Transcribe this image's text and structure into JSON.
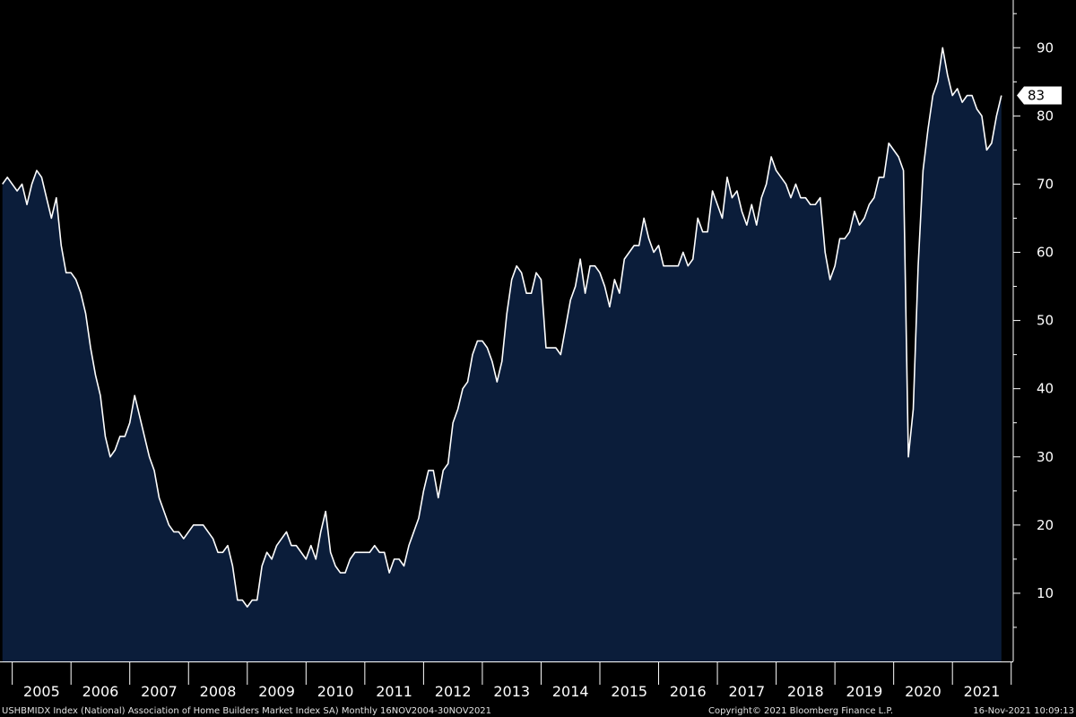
{
  "chart_data": {
    "type": "area",
    "y_axis_side": "right",
    "ylim": [
      0,
      97
    ],
    "y_ticks": [
      10,
      20,
      30,
      40,
      50,
      60,
      70,
      80,
      90
    ],
    "x_range": [
      "2004-11",
      "2021-12"
    ],
    "x_tick_labels": [
      "2005",
      "2006",
      "2007",
      "2008",
      "2009",
      "2010",
      "2011",
      "2012",
      "2013",
      "2014",
      "2015",
      "2016",
      "2017",
      "2018",
      "2019",
      "2020",
      "2021"
    ],
    "last_value_label": "83",
    "series": [
      {
        "type": "area",
        "points": [
          [
            "2004-11",
            70
          ],
          [
            "2004-12",
            71
          ],
          [
            "2005-01",
            70
          ],
          [
            "2005-02",
            69
          ],
          [
            "2005-03",
            70
          ],
          [
            "2005-04",
            67
          ],
          [
            "2005-05",
            70
          ],
          [
            "2005-06",
            72
          ],
          [
            "2005-07",
            71
          ],
          [
            "2005-08",
            68
          ],
          [
            "2005-09",
            65
          ],
          [
            "2005-10",
            68
          ],
          [
            "2005-11",
            61
          ],
          [
            "2005-12",
            57
          ],
          [
            "2006-01",
            57
          ],
          [
            "2006-02",
            56
          ],
          [
            "2006-03",
            54
          ],
          [
            "2006-04",
            51
          ],
          [
            "2006-05",
            46
          ],
          [
            "2006-06",
            42
          ],
          [
            "2006-07",
            39
          ],
          [
            "2006-08",
            33
          ],
          [
            "2006-09",
            30
          ],
          [
            "2006-10",
            31
          ],
          [
            "2006-11",
            33
          ],
          [
            "2006-12",
            33
          ],
          [
            "2007-01",
            35
          ],
          [
            "2007-02",
            39
          ],
          [
            "2007-03",
            36
          ],
          [
            "2007-04",
            33
          ],
          [
            "2007-05",
            30
          ],
          [
            "2007-06",
            28
          ],
          [
            "2007-07",
            24
          ],
          [
            "2007-08",
            22
          ],
          [
            "2007-09",
            20
          ],
          [
            "2007-10",
            19
          ],
          [
            "2007-11",
            19
          ],
          [
            "2007-12",
            18
          ],
          [
            "2008-01",
            19
          ],
          [
            "2008-02",
            20
          ],
          [
            "2008-03",
            20
          ],
          [
            "2008-04",
            20
          ],
          [
            "2008-05",
            19
          ],
          [
            "2008-06",
            18
          ],
          [
            "2008-07",
            16
          ],
          [
            "2008-08",
            16
          ],
          [
            "2008-09",
            17
          ],
          [
            "2008-10",
            14
          ],
          [
            "2008-11",
            9
          ],
          [
            "2008-12",
            9
          ],
          [
            "2009-01",
            8
          ],
          [
            "2009-02",
            9
          ],
          [
            "2009-03",
            9
          ],
          [
            "2009-04",
            14
          ],
          [
            "2009-05",
            16
          ],
          [
            "2009-06",
            15
          ],
          [
            "2009-07",
            17
          ],
          [
            "2009-08",
            18
          ],
          [
            "2009-09",
            19
          ],
          [
            "2009-10",
            17
          ],
          [
            "2009-11",
            17
          ],
          [
            "2009-12",
            16
          ],
          [
            "2010-01",
            15
          ],
          [
            "2010-02",
            17
          ],
          [
            "2010-03",
            15
          ],
          [
            "2010-04",
            19
          ],
          [
            "2010-05",
            22
          ],
          [
            "2010-06",
            16
          ],
          [
            "2010-07",
            14
          ],
          [
            "2010-08",
            13
          ],
          [
            "2010-09",
            13
          ],
          [
            "2010-10",
            15
          ],
          [
            "2010-11",
            16
          ],
          [
            "2010-12",
            16
          ],
          [
            "2011-01",
            16
          ],
          [
            "2011-02",
            16
          ],
          [
            "2011-03",
            17
          ],
          [
            "2011-04",
            16
          ],
          [
            "2011-05",
            16
          ],
          [
            "2011-06",
            13
          ],
          [
            "2011-07",
            15
          ],
          [
            "2011-08",
            15
          ],
          [
            "2011-09",
            14
          ],
          [
            "2011-10",
            17
          ],
          [
            "2011-11",
            19
          ],
          [
            "2011-12",
            21
          ],
          [
            "2012-01",
            25
          ],
          [
            "2012-02",
            28
          ],
          [
            "2012-03",
            28
          ],
          [
            "2012-04",
            24
          ],
          [
            "2012-05",
            28
          ],
          [
            "2012-06",
            29
          ],
          [
            "2012-07",
            35
          ],
          [
            "2012-08",
            37
          ],
          [
            "2012-09",
            40
          ],
          [
            "2012-10",
            41
          ],
          [
            "2012-11",
            45
          ],
          [
            "2012-12",
            47
          ],
          [
            "2013-01",
            47
          ],
          [
            "2013-02",
            46
          ],
          [
            "2013-03",
            44
          ],
          [
            "2013-04",
            41
          ],
          [
            "2013-05",
            44
          ],
          [
            "2013-06",
            51
          ],
          [
            "2013-07",
            56
          ],
          [
            "2013-08",
            58
          ],
          [
            "2013-09",
            57
          ],
          [
            "2013-10",
            54
          ],
          [
            "2013-11",
            54
          ],
          [
            "2013-12",
            57
          ],
          [
            "2014-01",
            56
          ],
          [
            "2014-02",
            46
          ],
          [
            "2014-03",
            46
          ],
          [
            "2014-04",
            46
          ],
          [
            "2014-05",
            45
          ],
          [
            "2014-06",
            49
          ],
          [
            "2014-07",
            53
          ],
          [
            "2014-08",
            55
          ],
          [
            "2014-09",
            59
          ],
          [
            "2014-10",
            54
          ],
          [
            "2014-11",
            58
          ],
          [
            "2014-12",
            58
          ],
          [
            "2015-01",
            57
          ],
          [
            "2015-02",
            55
          ],
          [
            "2015-03",
            52
          ],
          [
            "2015-04",
            56
          ],
          [
            "2015-05",
            54
          ],
          [
            "2015-06",
            59
          ],
          [
            "2015-07",
            60
          ],
          [
            "2015-08",
            61
          ],
          [
            "2015-09",
            61
          ],
          [
            "2015-10",
            65
          ],
          [
            "2015-11",
            62
          ],
          [
            "2015-12",
            60
          ],
          [
            "2016-01",
            61
          ],
          [
            "2016-02",
            58
          ],
          [
            "2016-03",
            58
          ],
          [
            "2016-04",
            58
          ],
          [
            "2016-05",
            58
          ],
          [
            "2016-06",
            60
          ],
          [
            "2016-07",
            58
          ],
          [
            "2016-08",
            59
          ],
          [
            "2016-09",
            65
          ],
          [
            "2016-10",
            63
          ],
          [
            "2016-11",
            63
          ],
          [
            "2016-12",
            69
          ],
          [
            "2017-01",
            67
          ],
          [
            "2017-02",
            65
          ],
          [
            "2017-03",
            71
          ],
          [
            "2017-04",
            68
          ],
          [
            "2017-05",
            69
          ],
          [
            "2017-06",
            66
          ],
          [
            "2017-07",
            64
          ],
          [
            "2017-08",
            67
          ],
          [
            "2017-09",
            64
          ],
          [
            "2017-10",
            68
          ],
          [
            "2017-11",
            70
          ],
          [
            "2017-12",
            74
          ],
          [
            "2018-01",
            72
          ],
          [
            "2018-02",
            71
          ],
          [
            "2018-03",
            70
          ],
          [
            "2018-04",
            68
          ],
          [
            "2018-05",
            70
          ],
          [
            "2018-06",
            68
          ],
          [
            "2018-07",
            68
          ],
          [
            "2018-08",
            67
          ],
          [
            "2018-09",
            67
          ],
          [
            "2018-10",
            68
          ],
          [
            "2018-11",
            60
          ],
          [
            "2018-12",
            56
          ],
          [
            "2019-01",
            58
          ],
          [
            "2019-02",
            62
          ],
          [
            "2019-03",
            62
          ],
          [
            "2019-04",
            63
          ],
          [
            "2019-05",
            66
          ],
          [
            "2019-06",
            64
          ],
          [
            "2019-07",
            65
          ],
          [
            "2019-08",
            67
          ],
          [
            "2019-09",
            68
          ],
          [
            "2019-10",
            71
          ],
          [
            "2019-11",
            71
          ],
          [
            "2019-12",
            76
          ],
          [
            "2020-01",
            75
          ],
          [
            "2020-02",
            74
          ],
          [
            "2020-03",
            72
          ],
          [
            "2020-04",
            30
          ],
          [
            "2020-05",
            37
          ],
          [
            "2020-06",
            58
          ],
          [
            "2020-07",
            72
          ],
          [
            "2020-08",
            78
          ],
          [
            "2020-09",
            83
          ],
          [
            "2020-10",
            85
          ],
          [
            "2020-11",
            90
          ],
          [
            "2020-12",
            86
          ],
          [
            "2021-01",
            83
          ],
          [
            "2021-02",
            84
          ],
          [
            "2021-03",
            82
          ],
          [
            "2021-04",
            83
          ],
          [
            "2021-05",
            83
          ],
          [
            "2021-06",
            81
          ],
          [
            "2021-07",
            80
          ],
          [
            "2021-08",
            75
          ],
          [
            "2021-09",
            76
          ],
          [
            "2021-10",
            80
          ],
          [
            "2021-11",
            83
          ]
        ]
      }
    ],
    "colors": {
      "background": "#000000",
      "area_fill": "#0b1d3a",
      "line": "#ffffff",
      "axis": "#ffffff",
      "last_value_box": "#ffffff"
    }
  },
  "footer": {
    "source_text": "USHBMIDX Index (National) Association of Home Builders Market Index SA) Monthly 16NOV2004-30NOV2021",
    "copyright_text": "Copyright© 2021 Bloomberg Finance L.P.",
    "timestamp_text": "16-Nov-2021 10:09:13"
  }
}
